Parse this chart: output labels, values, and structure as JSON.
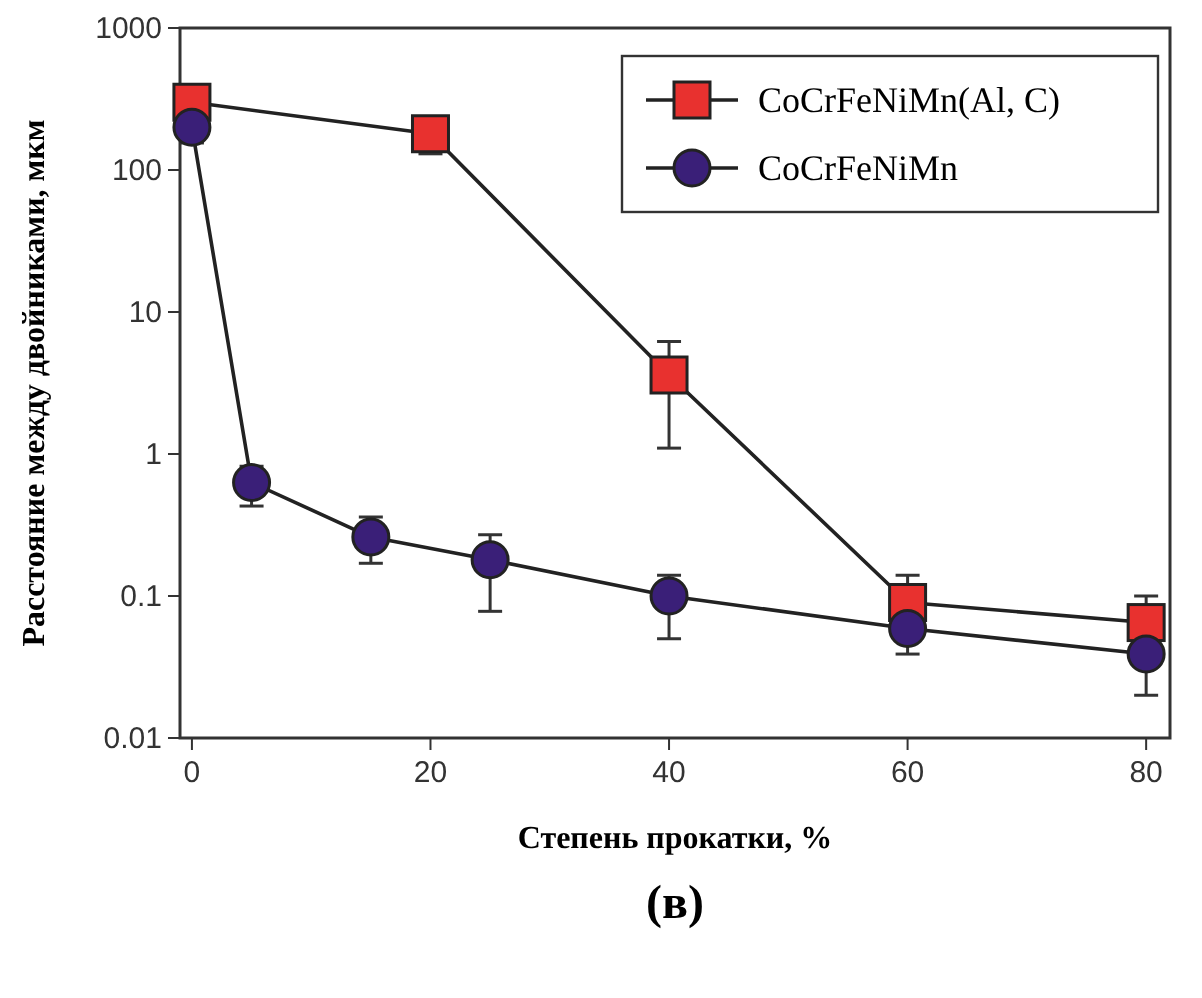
{
  "chart_data": {
    "type": "line",
    "xlabel": "Степень прокатки, %",
    "ylabel": "Расстояние между двойниками, мкм",
    "annotations": [
      "(в)"
    ],
    "xlim": [
      -1,
      82
    ],
    "xticks": [
      0,
      20,
      40,
      60,
      80
    ],
    "ylim": [
      0.01,
      1000
    ],
    "yticks": [
      0.01,
      0.1,
      1,
      10,
      100,
      1000
    ],
    "log": "y",
    "grid": false,
    "legend": "top right",
    "series": [
      {
        "name": "CoCrFeNiMn(Al, C)",
        "color": "#e8312f",
        "marker": "square",
        "x": [
          0,
          20,
          40,
          60,
          80
        ],
        "values": [
          300,
          180,
          3.6,
          0.09,
          0.065
        ],
        "errors": [
          null,
          [
            130,
            180
          ],
          [
            1.1,
            6.2
          ],
          [
            0.07,
            0.14
          ],
          [
            0.065,
            0.1
          ]
        ]
      },
      {
        "name": "CoCrFeNiMn",
        "color": "#3a1f78",
        "marker": "circle",
        "x": [
          0,
          5,
          15,
          25,
          40,
          60,
          80
        ],
        "values": [
          200,
          0.63,
          0.26,
          0.18,
          0.1,
          0.059,
          0.039
        ],
        "errors": [
          [
            155,
            200
          ],
          [
            0.43,
            0.82
          ],
          [
            0.17,
            0.36
          ],
          [
            0.078,
            0.27
          ],
          [
            0.05,
            0.14
          ],
          [
            0.039,
            0.07
          ],
          [
            0.02,
            0.055
          ]
        ]
      }
    ]
  }
}
